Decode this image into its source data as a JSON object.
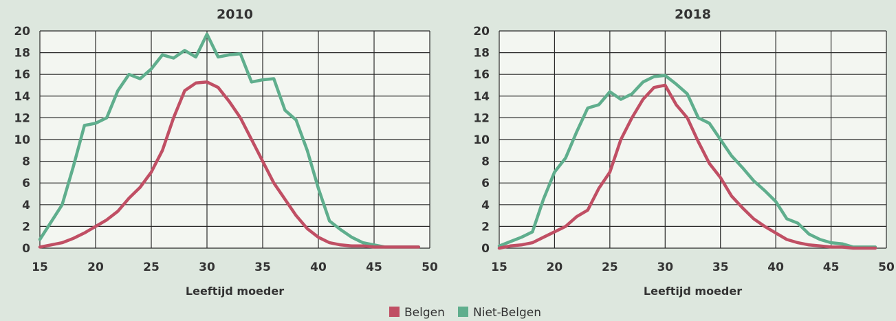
{
  "colors": {
    "background": "#dde7de",
    "plot_background": "#f3f6f1",
    "grid": "#2a2a2a",
    "belgen": "#c04f64",
    "niet_belgen": "#5fae8d"
  },
  "legend": {
    "items": [
      {
        "label": "Belgen",
        "color": "#c04f64"
      },
      {
        "label": "Niet-Belgen",
        "color": "#5fae8d"
      }
    ],
    "placement": "bottom-center"
  },
  "chart_data": [
    {
      "type": "line",
      "title": "2010",
      "xlabel": "Leeftijd moeder",
      "ylabel": "",
      "xlim": [
        15,
        50
      ],
      "ylim": [
        0,
        20
      ],
      "xticks": [
        "15",
        "20",
        "25",
        "30",
        "35",
        "40",
        "45",
        "50"
      ],
      "yticks": [
        "0",
        "2",
        "4",
        "6",
        "8",
        "10",
        "12",
        "14",
        "16",
        "18",
        "20"
      ],
      "grid": true,
      "series": [
        {
          "name": "Belgen",
          "color": "#c04f64",
          "x": [
            15,
            16,
            17,
            18,
            19,
            20,
            21,
            22,
            23,
            24,
            25,
            26,
            27,
            28,
            29,
            30,
            31,
            32,
            33,
            34,
            35,
            36,
            37,
            38,
            39,
            40,
            41,
            42,
            43,
            44,
            45,
            46,
            47,
            48,
            49
          ],
          "y": [
            0.1,
            0.3,
            0.5,
            0.9,
            1.4,
            2.0,
            2.6,
            3.4,
            4.6,
            5.6,
            7.0,
            9.0,
            12.0,
            14.5,
            15.2,
            15.3,
            14.8,
            13.5,
            12.0,
            10.0,
            8.0,
            6.0,
            4.5,
            3.0,
            1.8,
            1.0,
            0.5,
            0.3,
            0.2,
            0.2,
            0.1,
            0.1,
            0.1,
            0.1,
            0.1
          ]
        },
        {
          "name": "Niet-Belgen",
          "color": "#5fae8d",
          "x": [
            15,
            16,
            17,
            18,
            19,
            20,
            21,
            22,
            23,
            24,
            25,
            26,
            27,
            28,
            29,
            30,
            31,
            32,
            33,
            34,
            35,
            36,
            37,
            38,
            39,
            40,
            41,
            42,
            43,
            44,
            45,
            46,
            47,
            48,
            49
          ],
          "y": [
            0.8,
            2.4,
            4.0,
            7.5,
            11.3,
            11.5,
            12.0,
            14.5,
            16.0,
            15.6,
            16.5,
            17.8,
            17.5,
            18.2,
            17.6,
            19.7,
            17.6,
            17.8,
            17.9,
            15.3,
            15.5,
            15.6,
            12.7,
            11.8,
            9.0,
            5.5,
            2.5,
            1.7,
            1.0,
            0.5,
            0.3,
            0.1,
            0.1,
            0.1,
            0.1
          ]
        }
      ]
    },
    {
      "type": "line",
      "title": "2018",
      "xlabel": "Leeftijd moeder",
      "ylabel": "",
      "xlim": [
        15,
        50
      ],
      "ylim": [
        0,
        20
      ],
      "xticks": [
        "15",
        "20",
        "25",
        "30",
        "35",
        "40",
        "45",
        "50"
      ],
      "yticks": [
        "0",
        "2",
        "4",
        "6",
        "8",
        "10",
        "12",
        "14",
        "16",
        "18",
        "20"
      ],
      "grid": true,
      "series": [
        {
          "name": "Belgen",
          "color": "#c04f64",
          "x": [
            15,
            16,
            17,
            18,
            19,
            20,
            21,
            22,
            23,
            24,
            25,
            26,
            27,
            28,
            29,
            30,
            31,
            32,
            33,
            34,
            35,
            36,
            37,
            38,
            39,
            40,
            41,
            42,
            43,
            44,
            45,
            46,
            47,
            48,
            49
          ],
          "y": [
            0.0,
            0.2,
            0.3,
            0.5,
            1.0,
            1.5,
            2.0,
            2.9,
            3.5,
            5.5,
            7.0,
            10.0,
            12.0,
            13.7,
            14.8,
            15.0,
            13.2,
            12.0,
            9.8,
            7.8,
            6.5,
            4.8,
            3.7,
            2.7,
            2.0,
            1.4,
            0.8,
            0.5,
            0.3,
            0.2,
            0.1,
            0.1,
            0.0,
            0.0,
            0.0
          ]
        },
        {
          "name": "Niet-Belgen",
          "color": "#5fae8d",
          "x": [
            15,
            16,
            17,
            18,
            19,
            20,
            21,
            22,
            23,
            24,
            25,
            26,
            27,
            28,
            29,
            30,
            31,
            32,
            33,
            34,
            35,
            36,
            37,
            38,
            39,
            40,
            41,
            42,
            43,
            44,
            45,
            46,
            47,
            48,
            49
          ],
          "y": [
            0.2,
            0.6,
            1.0,
            1.5,
            4.5,
            7.0,
            8.3,
            10.7,
            12.9,
            13.2,
            14.4,
            13.7,
            14.2,
            15.3,
            15.8,
            15.9,
            15.1,
            14.2,
            12.0,
            11.5,
            10.0,
            8.5,
            7.4,
            6.2,
            5.3,
            4.3,
            2.7,
            2.3,
            1.3,
            0.8,
            0.5,
            0.4,
            0.1,
            0.1,
            0.1
          ]
        }
      ]
    }
  ]
}
